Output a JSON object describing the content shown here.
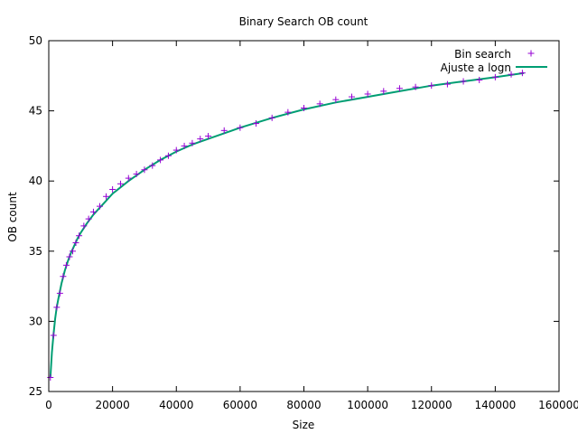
{
  "chart_data": {
    "type": "scatter",
    "title": "Binary Search OB count",
    "xlabel": "Size",
    "ylabel": "OB count",
    "xlim": [
      0,
      160000
    ],
    "ylim": [
      25,
      50
    ],
    "x_ticks": [
      {
        "value": 0,
        "label": "0"
      },
      {
        "value": 20000,
        "label": "20000"
      },
      {
        "value": 40000,
        "label": "40000"
      },
      {
        "value": 60000,
        "label": "60000"
      },
      {
        "value": 80000,
        "label": "80000"
      },
      {
        "value": 100000,
        "label": "100000"
      },
      {
        "value": 120000,
        "label": "120000"
      },
      {
        "value": 140000,
        "label": "140000"
      },
      {
        "value": 160000,
        "label": "160000"
      }
    ],
    "y_ticks": [
      {
        "value": 25,
        "label": "25"
      },
      {
        "value": 30,
        "label": "30"
      },
      {
        "value": 35,
        "label": "35"
      },
      {
        "value": 40,
        "label": "40"
      },
      {
        "value": 45,
        "label": "45"
      },
      {
        "value": 50,
        "label": "50"
      }
    ],
    "legend_position": "top-right",
    "series": [
      {
        "name": "Bin search",
        "kind": "points",
        "marker": "plus",
        "color": "#9400d3",
        "x": [
          500,
          1500,
          2500,
          3500,
          4500,
          5500,
          6500,
          7500,
          8500,
          9500,
          11000,
          12500,
          14000,
          16000,
          18000,
          20000,
          22500,
          25000,
          27500,
          30000,
          32500,
          35000,
          37500,
          40000,
          42500,
          45000,
          47500,
          50000,
          55000,
          60000,
          65000,
          70000,
          75000,
          80000,
          85000,
          90000,
          95000,
          100000,
          105000,
          110000,
          115000,
          120000,
          125000,
          130000,
          135000,
          140000,
          145000,
          148500
        ],
        "y": [
          26,
          29,
          31,
          32,
          33.2,
          34,
          34.6,
          35,
          35.6,
          36.1,
          36.8,
          37.3,
          37.8,
          38.2,
          38.9,
          39.4,
          39.8,
          40.2,
          40.5,
          40.8,
          41.1,
          41.5,
          41.8,
          42.2,
          42.5,
          42.7,
          43,
          43.2,
          43.6,
          43.8,
          44.1,
          44.5,
          44.9,
          45.2,
          45.5,
          45.8,
          46,
          46.2,
          46.4,
          46.6,
          46.7,
          46.8,
          46.9,
          47.1,
          47.2,
          47.4,
          47.6,
          47.7
        ]
      },
      {
        "name": "Ajuste a logn",
        "kind": "line",
        "color": "#009e73",
        "x": [
          500,
          1000,
          1500,
          2000,
          2500,
          3000,
          4000,
          5000,
          6000,
          7000,
          8000,
          9000,
          10000,
          12000,
          14000,
          16000,
          18000,
          20000,
          25000,
          30000,
          35000,
          40000,
          45000,
          50000,
          60000,
          70000,
          80000,
          90000,
          100000,
          110000,
          120000,
          130000,
          140000,
          149000
        ],
        "y": [
          26,
          27.8,
          29.1,
          30.2,
          31,
          31.6,
          32.7,
          33.6,
          34.3,
          34.9,
          35.4,
          35.9,
          36.3,
          37,
          37.6,
          38.1,
          38.6,
          39.1,
          40,
          40.8,
          41.5,
          42.1,
          42.6,
          43,
          43.8,
          44.5,
          45.1,
          45.6,
          46,
          46.4,
          46.8,
          47.1,
          47.4,
          47.7
        ]
      }
    ]
  }
}
